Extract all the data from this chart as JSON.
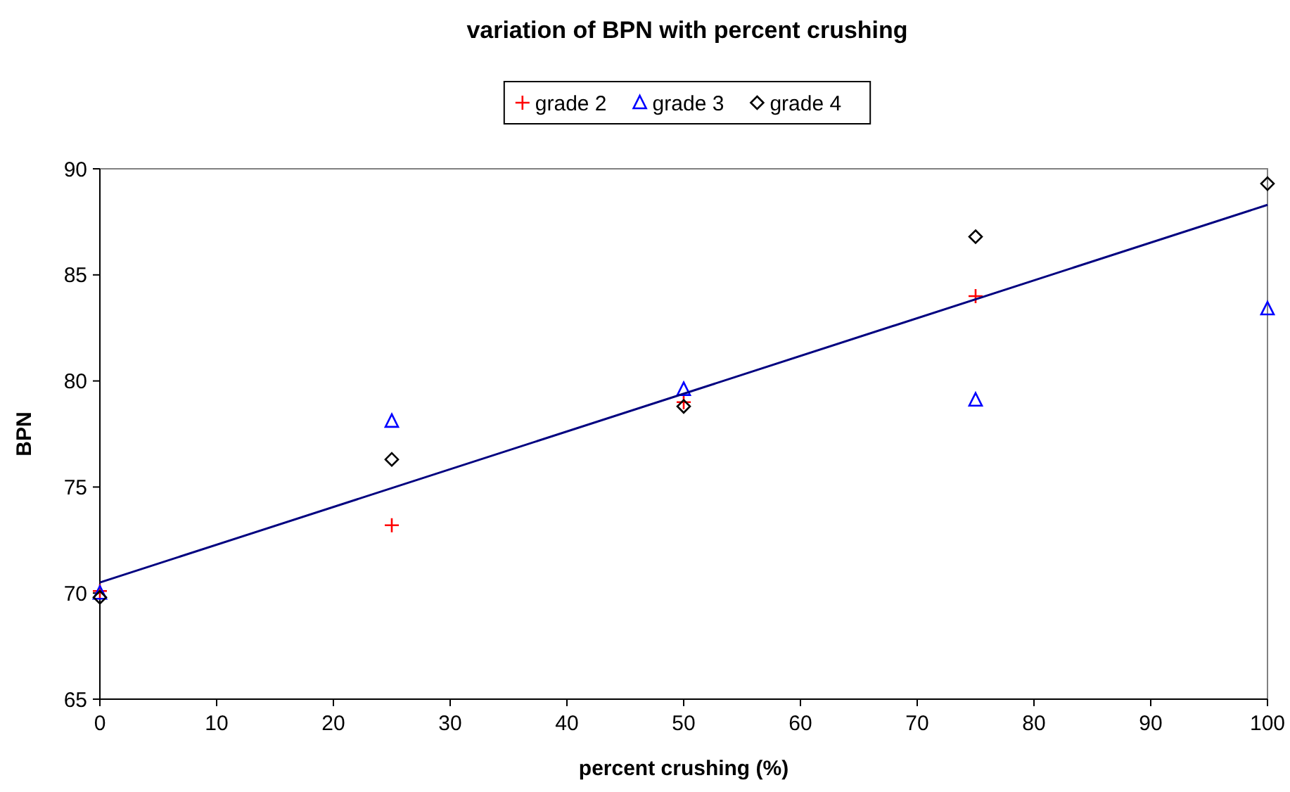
{
  "chart_data": {
    "type": "scatter",
    "title": "variation of BPN with percent crushing",
    "xlabel": "percent crushing (%)",
    "ylabel": "BPN",
    "xlim": [
      0,
      100
    ],
    "xticks": [
      0,
      10,
      20,
      30,
      40,
      50,
      60,
      70,
      80,
      90,
      100
    ],
    "ylim": [
      65,
      90
    ],
    "yticks": [
      65,
      70,
      75,
      80,
      85,
      90
    ],
    "legend": "top",
    "grid": false,
    "series": [
      {
        "name": "grade 2",
        "color": "#ff0000",
        "marker": "cross",
        "x": [
          0,
          25,
          50,
          75
        ],
        "values": [
          70.1,
          73.2,
          79.0,
          84.0
        ]
      },
      {
        "name": "grade 3",
        "color": "#0000ff",
        "marker": "triangle",
        "x": [
          0,
          25,
          50,
          75,
          100
        ],
        "values": [
          70.0,
          78.1,
          79.6,
          79.1,
          83.4
        ]
      },
      {
        "name": "grade 4",
        "color": "#000000",
        "marker": "diamond",
        "x": [
          0,
          25,
          50,
          75,
          100
        ],
        "values": [
          69.8,
          76.3,
          78.8,
          86.8,
          89.3
        ]
      },
      {
        "type": "line",
        "color": "#000080",
        "x": [
          0,
          100
        ],
        "values": [
          70.5,
          88.3
        ]
      }
    ]
  }
}
